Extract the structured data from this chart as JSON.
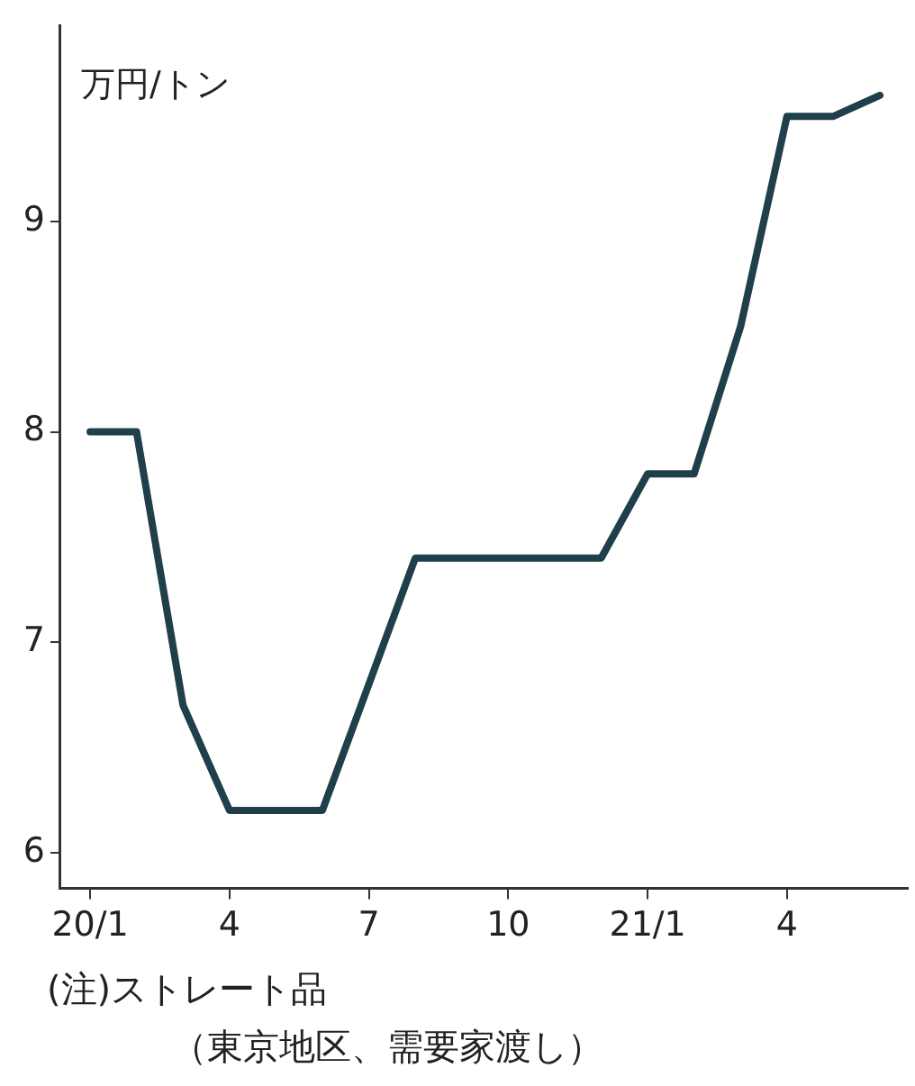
{
  "chart_data": {
    "type": "line",
    "ylabel": "万円/トン",
    "categories": [
      "20/1",
      null,
      null,
      "4",
      null,
      null,
      "7",
      null,
      null,
      "10",
      null,
      null,
      "21/1",
      null,
      null,
      "4",
      null,
      null
    ],
    "series": [
      {
        "color": "#1f3f4a",
        "values": [
          8.0,
          8.0,
          6.7,
          6.2,
          6.2,
          6.2,
          6.8,
          7.4,
          7.4,
          7.4,
          7.4,
          7.4,
          7.8,
          7.8,
          8.5,
          9.5,
          9.5,
          9.6
        ]
      }
    ],
    "ylim": [
      5.83,
      9.93
    ],
    "yticks": [
      6,
      7,
      8,
      9
    ],
    "grid": false,
    "legend": false,
    "marker": "none",
    "line_style": "solid",
    "annotations": [
      "(注)ストレート品",
      "（東京地区、需要家渡し）"
    ]
  }
}
